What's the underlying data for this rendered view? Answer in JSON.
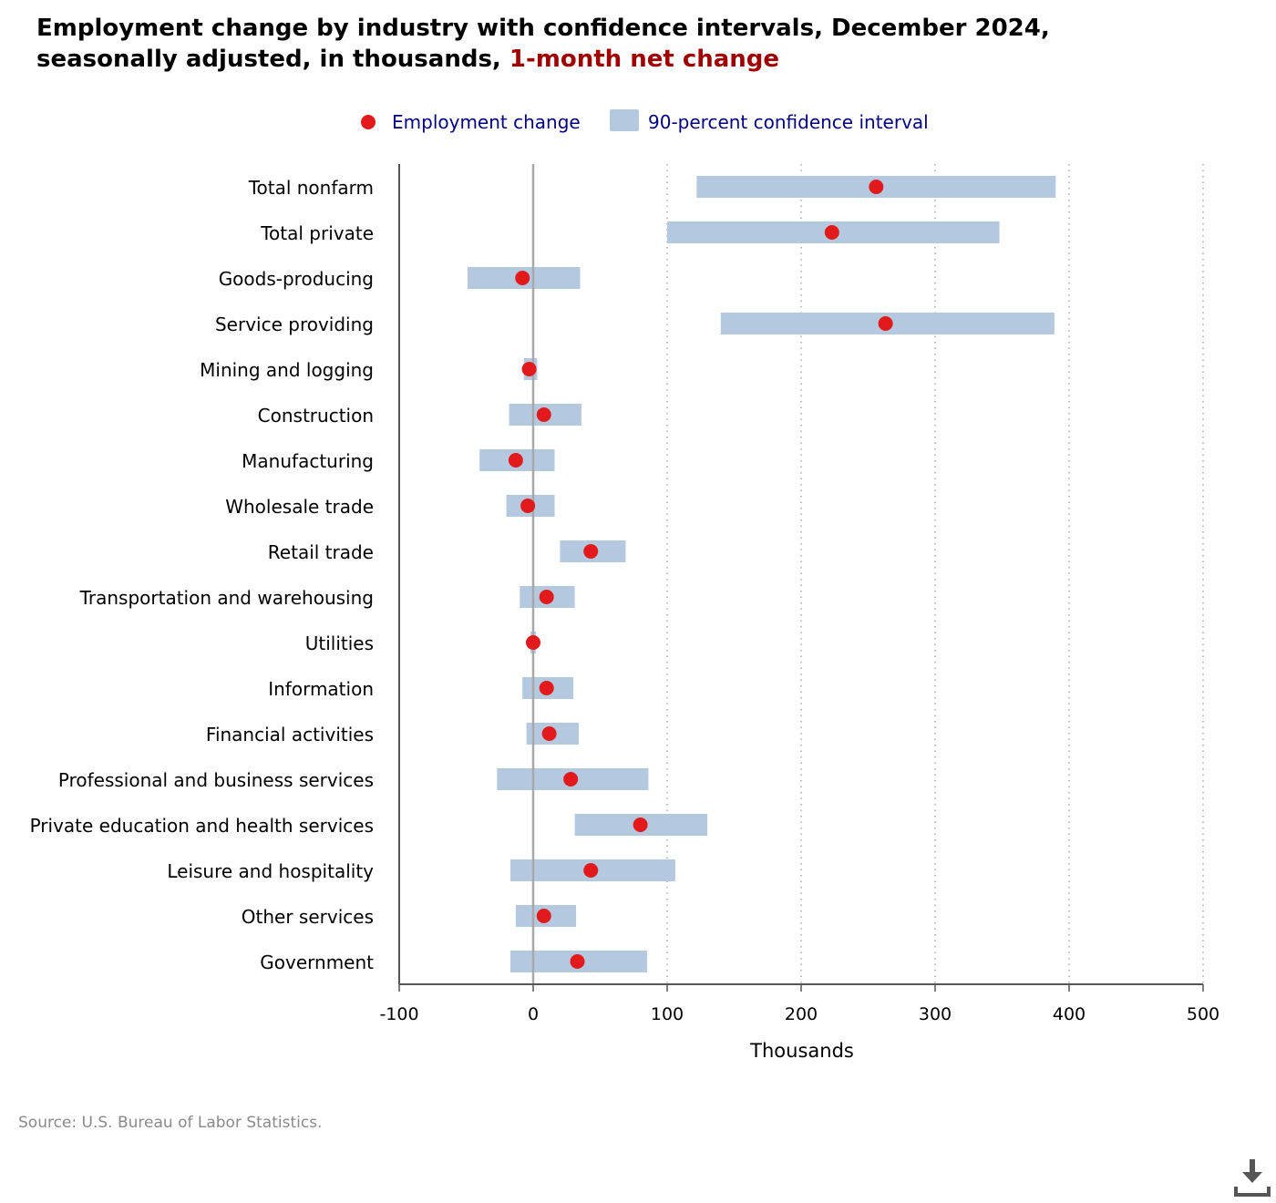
{
  "title": {
    "line1": "Employment change by industry with confidence intervals, December 2024,",
    "line2_prefix": "seasonally adjusted, in thousands, ",
    "line2_highlight": "1-month net change"
  },
  "source": "Source: U.S. Bureau of Labor Statistics.",
  "download": {
    "icon": "download-icon"
  },
  "colors": {
    "point": "#e31a1c",
    "interval": "#b4c9e0",
    "legend_text": "#000080",
    "highlight": "#a00000",
    "source_text": "#8a8a8a"
  },
  "chart_data": {
    "type": "scatter",
    "xlabel": "Thousands",
    "xlim": [
      -100,
      500
    ],
    "xticks": [
      -100,
      0,
      100,
      200,
      300,
      400,
      500
    ],
    "xtick_labels": [
      "-100",
      "0",
      "100",
      "200",
      "300",
      "400",
      "500"
    ],
    "grid": "vertical dotted",
    "legend_position": "top-center",
    "legend": {
      "point_label": "Employment change",
      "interval_label": "90-percent confidence interval"
    },
    "categories": [
      "Total nonfarm",
      "Total private",
      "Goods-producing",
      "Service providing",
      "Mining and logging",
      "Construction",
      "Manufacturing",
      "Wholesale trade",
      "Retail trade",
      "Transportation and warehousing",
      "Utilities",
      "Information",
      "Financial activities",
      "Professional and business services",
      "Private education and health services",
      "Leisure and hospitality",
      "Other services",
      "Government"
    ],
    "series": [
      {
        "name": "Employment change",
        "values": [
          256,
          223,
          -8,
          263,
          -3,
          8,
          -13,
          -4,
          43,
          10,
          0,
          10,
          12,
          28,
          80,
          43,
          8,
          33
        ]
      },
      {
        "name": "90-percent confidence interval",
        "low": [
          122,
          100,
          -49,
          140,
          -7,
          -18,
          -40,
          -20,
          20,
          -10,
          -2,
          -8,
          -5,
          -27,
          31,
          -17,
          -13,
          -17
        ],
        "high": [
          390,
          348,
          35,
          389,
          3,
          36,
          16,
          16,
          69,
          31,
          2,
          30,
          34,
          86,
          130,
          106,
          32,
          85
        ]
      }
    ]
  }
}
